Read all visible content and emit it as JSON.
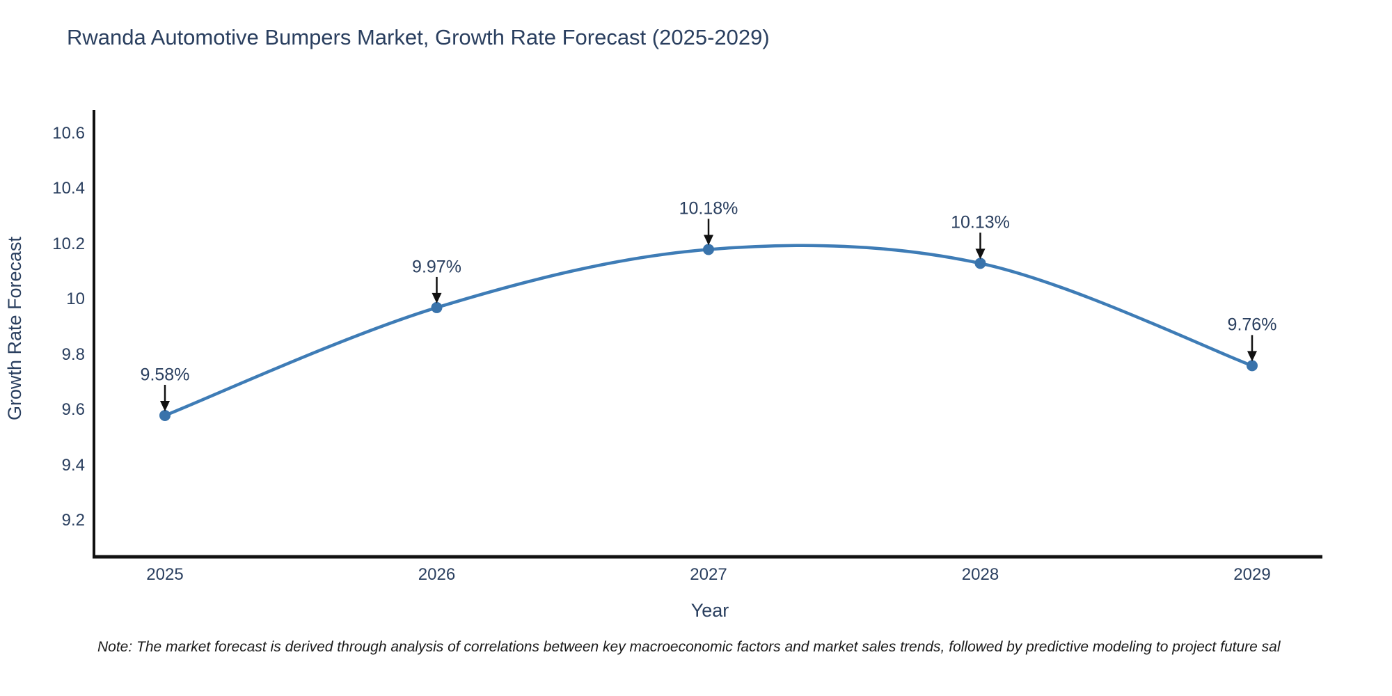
{
  "chart_data": {
    "type": "line",
    "title": "Rwanda Automotive Bumpers Market, Growth Rate Forecast (2025-2029)",
    "xlabel": "Year",
    "ylabel": "Growth Rate Forecast",
    "categories": [
      "2025",
      "2026",
      "2027",
      "2028",
      "2029"
    ],
    "series": [
      {
        "name": "Growth Rate Forecast",
        "values": [
          9.58,
          9.97,
          10.18,
          10.13,
          9.76
        ]
      }
    ],
    "point_labels": [
      "9.58%",
      "9.97%",
      "10.18%",
      "10.13%",
      "9.76%"
    ],
    "ytick_labels": [
      "9.2",
      "9.4",
      "9.6",
      "9.8",
      "10",
      "10.2",
      "10.4",
      "10.6"
    ],
    "ylim": [
      9.07,
      10.68
    ],
    "grid": false,
    "line_shape": "spline",
    "legend": "none",
    "colors": {
      "line": "#3e7cb6",
      "marker": "#3973ab",
      "axis": "#111111",
      "text": "#2a3f5f",
      "arrow": "#111111"
    }
  },
  "note": "Note: The market forecast is derived through analysis of correlations between key macroeconomic factors and market sales trends, followed by predictive modeling to project future sal"
}
